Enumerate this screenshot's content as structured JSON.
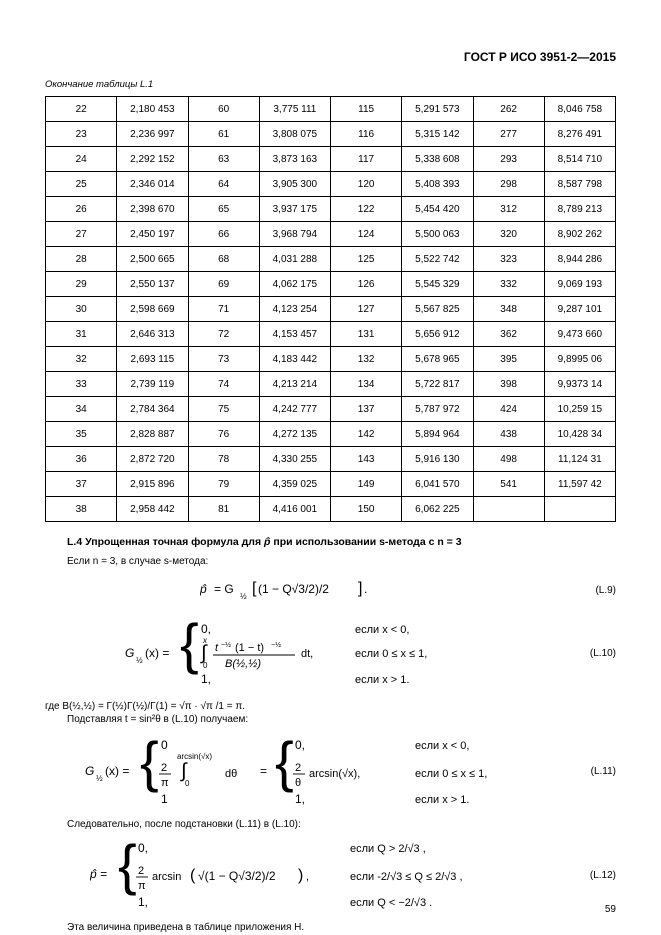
{
  "doc_header": "ГОСТ Р ИСО 3951-2—2015",
  "table_caption": "Окончание таблицы L.1",
  "page_number": "59",
  "table": {
    "rows": [
      [
        "22",
        "2,180 453",
        "60",
        "3,775 111",
        "115",
        "5,291 573",
        "262",
        "8,046 758"
      ],
      [
        "23",
        "2,236 997",
        "61",
        "3,808 075",
        "116",
        "5,315 142",
        "277",
        "8,276 491"
      ],
      [
        "24",
        "2,292 152",
        "63",
        "3,873 163",
        "117",
        "5,338 608",
        "293",
        "8,514 710"
      ],
      [
        "25",
        "2,346 014",
        "64",
        "3,905 300",
        "120",
        "5,408 393",
        "298",
        "8,587 798"
      ],
      [
        "26",
        "2,398 670",
        "65",
        "3,937 175",
        "122",
        "5,454 420",
        "312",
        "8,789 213"
      ],
      [
        "27",
        "2,450 197",
        "66",
        "3,968 794",
        "124",
        "5,500 063",
        "320",
        "8,902 262"
      ],
      [
        "28",
        "2,500 665",
        "68",
        "4,031 288",
        "125",
        "5,522 742",
        "323",
        "8,944 286"
      ],
      [
        "29",
        "2,550 137",
        "69",
        "4,062 175",
        "126",
        "5,545 329",
        "332",
        "9,069 193"
      ],
      [
        "30",
        "2,598 669",
        "71",
        "4,123 254",
        "127",
        "5,567 825",
        "348",
        "9,287 101"
      ],
      [
        "31",
        "2,646 313",
        "72",
        "4,153 457",
        "131",
        "5,656 912",
        "362",
        "9,473 660"
      ],
      [
        "32",
        "2,693 115",
        "73",
        "4,183 442",
        "132",
        "5,678 965",
        "395",
        "9,8995 06"
      ],
      [
        "33",
        "2,739 119",
        "74",
        "4,213 214",
        "134",
        "5,722 817",
        "398",
        "9,9373 14"
      ],
      [
        "34",
        "2,784 364",
        "75",
        "4,242 777",
        "137",
        "5,787 972",
        "424",
        "10,259 15"
      ],
      [
        "35",
        "2,828 887",
        "76",
        "4,272 135",
        "142",
        "5,894 964",
        "438",
        "10,428 34"
      ],
      [
        "36",
        "2,872 720",
        "78",
        "4,330 255",
        "143",
        "5,916 130",
        "498",
        "11,124 31"
      ],
      [
        "37",
        "2,915 896",
        "79",
        "4,359 025",
        "149",
        "6,041 570",
        "541",
        "11,597 42"
      ],
      [
        "38",
        "2,958 442",
        "81",
        "4,416 001",
        "150",
        "6,062 225",
        "",
        ""
      ]
    ]
  },
  "section": {
    "number": "L.4",
    "title_before": " Упрощенная точная формула для ",
    "title_phat": "p̂",
    "title_after": " при использовании s-метода с n = 3"
  },
  "text": {
    "line1": "Если n = 3, в случае s-метода:",
    "eq9": "(L.9)",
    "eq10": "(L.10)",
    "line_beta_pre": "где B(½,½) = Г(½)Г(½)/Г(1) = ",
    "line_beta_mid1": "√π",
    "line_beta_mid2": " · √π",
    "line_beta_post": " /1 = π.",
    "line_subst": "Подставляя t = sin²θ в (L.10) получаем:",
    "eq11": "(L.11)",
    "line_consequently": "Следовательно, после подстановки (L.11) в (L.10):",
    "eq12": "(L.12)",
    "line_final": "Эта величина приведена в таблице приложения Н."
  }
}
